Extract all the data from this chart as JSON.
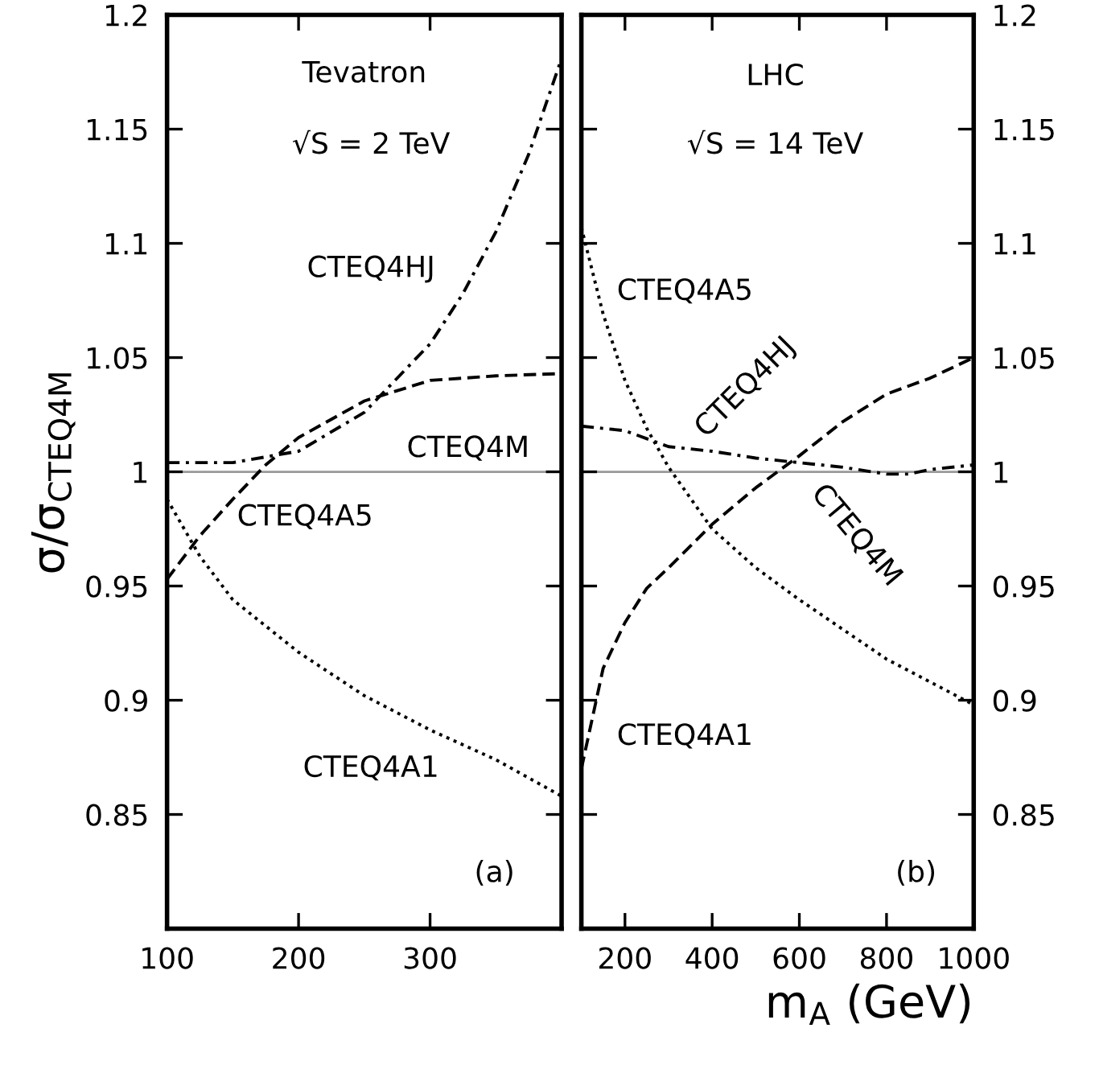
{
  "chart_data": [
    {
      "type": "line",
      "ylabel": "σ/σ$_{CTEQ4M}$",
      "xlim": [
        100,
        400
      ],
      "xticks": [
        100,
        200,
        300
      ],
      "ylim": [
        0.8,
        1.2
      ],
      "yticks": [
        0.85,
        0.9,
        0.95,
        1,
        1.05,
        1.1,
        1.15,
        1.2
      ],
      "tick_labels": "xy",
      "grid": false,
      "legend": false,
      "ref_lines": [
        {
          "axis": "y",
          "value": 1,
          "color": "#999999",
          "line_style": "solid"
        }
      ],
      "series": [
        {
          "color": "#000000",
          "line_style": "dashdot",
          "x": [
            100,
            150,
            200,
            250,
            300,
            325,
            350,
            375,
            400
          ],
          "values": [
            1.004,
            1.004,
            1.009,
            1.026,
            1.056,
            1.078,
            1.105,
            1.139,
            1.181
          ]
        },
        {
          "color": "#000000",
          "line_style": "dashed",
          "x": [
            100,
            125,
            150,
            175,
            200,
            250,
            300,
            350,
            400
          ],
          "values": [
            0.953,
            0.972,
            0.988,
            1.003,
            1.015,
            1.031,
            1.04,
            1.042,
            1.043
          ]
        },
        {
          "color": "#000000",
          "line_style": "dotted",
          "x": [
            100,
            125,
            150,
            200,
            250,
            300,
            350,
            400
          ],
          "values": [
            0.988,
            0.963,
            0.944,
            0.921,
            0.902,
            0.887,
            0.874,
            0.858
          ]
        }
      ],
      "annotations": [
        "Tevatron",
        "√S = 2 TeV",
        "CTEQ4HJ",
        "CTEQ4M",
        "CTEQ4A5",
        "CTEQ4A1",
        "(a)"
      ]
    },
    {
      "type": "line",
      "xlabel": "m$_{A}$ (GeV)",
      "xlim": [
        100,
        1000
      ],
      "xticks": [
        200,
        400,
        600,
        800,
        1000
      ],
      "ylim": [
        0.8,
        1.2
      ],
      "yticks": [
        0.85,
        0.9,
        0.95,
        1,
        1.05,
        1.1,
        1.15,
        1.2
      ],
      "tick_labels": "xy2",
      "grid": false,
      "legend": false,
      "ref_lines": [
        {
          "axis": "y",
          "value": 1,
          "color": "#999999",
          "line_style": "solid"
        }
      ],
      "series": [
        {
          "color": "#000000",
          "line_style": "dotted",
          "x": [
            100,
            150,
            200,
            250,
            300,
            400,
            500,
            600,
            700,
            800,
            900,
            1000
          ],
          "values": [
            1.107,
            1.069,
            1.04,
            1.019,
            1.002,
            0.975,
            0.958,
            0.944,
            0.931,
            0.918,
            0.908,
            0.898
          ]
        },
        {
          "color": "#000000",
          "line_style": "dashed",
          "x": [
            100,
            150,
            200,
            250,
            300,
            400,
            500,
            600,
            700,
            800,
            900,
            1000
          ],
          "values": [
            0.87,
            0.914,
            0.934,
            0.949,
            0.958,
            0.977,
            0.993,
            1.007,
            1.022,
            1.034,
            1.041,
            1.05
          ]
        },
        {
          "color": "#000000",
          "line_style": "dashdot",
          "x": [
            100,
            200,
            300,
            400,
            500,
            600,
            700,
            800,
            850,
            900,
            1000
          ],
          "values": [
            1.02,
            1.018,
            1.011,
            1.009,
            1.006,
            1.004,
            1.002,
            0.999,
            0.999,
            1.001,
            1.003
          ]
        }
      ],
      "annotations": [
        "LHC",
        "√S = 14 TeV",
        "CTEQ4A5",
        "CTEQ4HJ",
        "CTEQ4M",
        "CTEQ4A1",
        "(b)"
      ]
    }
  ]
}
